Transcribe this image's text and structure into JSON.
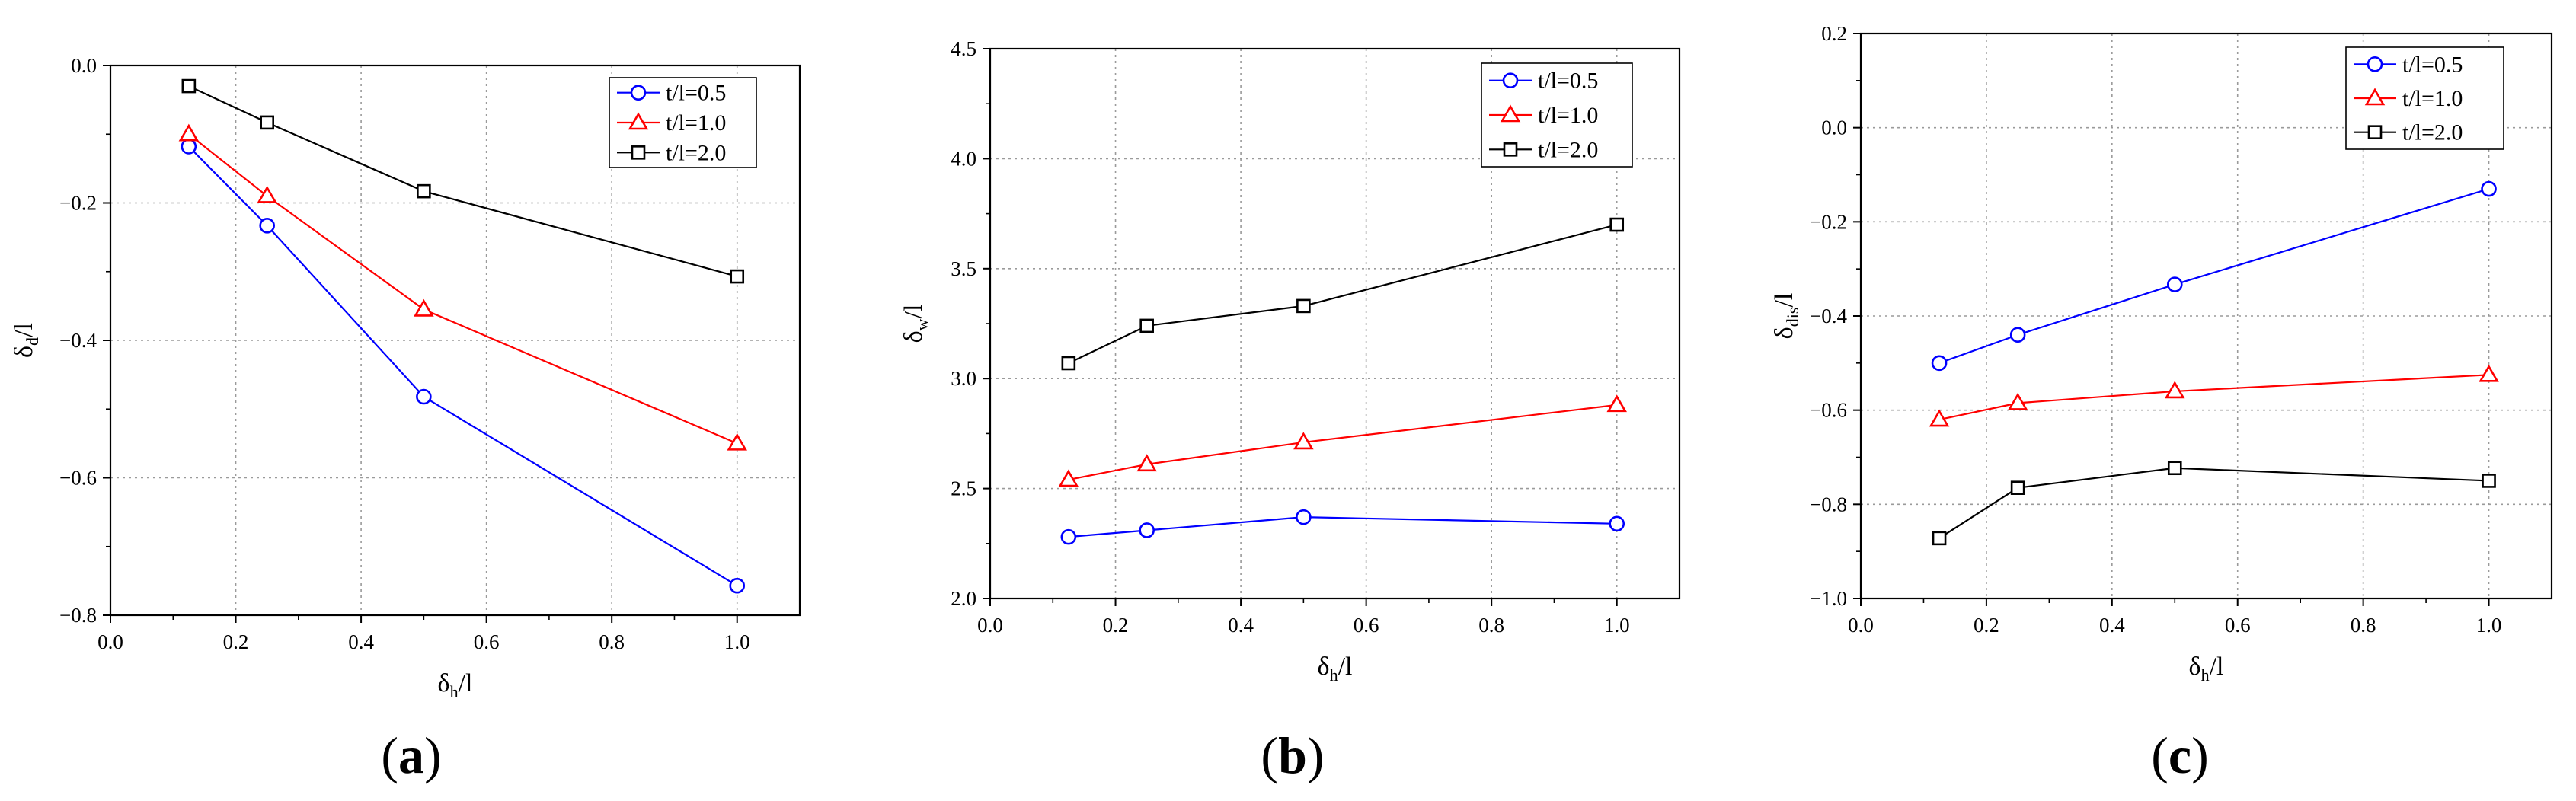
{
  "chart_data": [
    {
      "type": "line",
      "panel_label": "a",
      "x": [
        0.125,
        0.25,
        0.5,
        1.0
      ],
      "xlim": [
        0.0,
        1.1
      ],
      "ylim": [
        -0.8,
        0.0
      ],
      "xticks": [
        0.0,
        0.2,
        0.4,
        0.6,
        0.8,
        1.0
      ],
      "yticks": [
        -0.8,
        -0.6,
        -0.4,
        -0.2,
        0.0
      ],
      "xtick_labels": [
        "0.0",
        "0.2",
        "0.4",
        "0.6",
        "0.8",
        "1.0"
      ],
      "ytick_labels": [
        "−0.8",
        "−0.6",
        "−0.4",
        "−0.2",
        "0.0"
      ],
      "xlabel": {
        "main": "δ",
        "sub": "h",
        "rest": "/l"
      },
      "ylabel": {
        "main": "δ",
        "sub": "d",
        "rest": "/l"
      },
      "grid": true,
      "legend_position": "top-right",
      "series": [
        {
          "name": "t/l=0.5",
          "color": "#0000ff",
          "marker": "circle",
          "values": [
            -0.118,
            -0.233,
            -0.482,
            -0.757
          ]
        },
        {
          "name": "t/l=1.0",
          "color": "#ff0000",
          "marker": "triangle",
          "values": [
            -0.1,
            -0.19,
            -0.355,
            -0.55
          ]
        },
        {
          "name": "t/l=2.0",
          "color": "#000000",
          "marker": "square",
          "values": [
            -0.03,
            -0.083,
            -0.183,
            -0.307
          ]
        }
      ]
    },
    {
      "type": "line",
      "panel_label": "b",
      "x": [
        0.125,
        0.25,
        0.5,
        1.0
      ],
      "xlim": [
        0.0,
        1.1
      ],
      "ylim": [
        2.0,
        4.5
      ],
      "xticks": [
        0.0,
        0.2,
        0.4,
        0.6,
        0.8,
        1.0
      ],
      "yticks": [
        2.0,
        2.5,
        3.0,
        3.5,
        4.0,
        4.5
      ],
      "xtick_labels": [
        "0.0",
        "0.2",
        "0.4",
        "0.6",
        "0.8",
        "1.0"
      ],
      "ytick_labels": [
        "2.0",
        "2.5",
        "3.0",
        "3.5",
        "4.0",
        "4.5"
      ],
      "xlabel": {
        "main": "δ",
        "sub": "h",
        "rest": "/l"
      },
      "ylabel": {
        "main": "δ",
        "sub": "w",
        "rest": "/l"
      },
      "grid": true,
      "legend_position": "top-right",
      "series": [
        {
          "name": "t/l=0.5",
          "color": "#0000ff",
          "marker": "circle",
          "values": [
            2.28,
            2.31,
            2.37,
            2.34
          ]
        },
        {
          "name": "t/l=1.0",
          "color": "#ff0000",
          "marker": "triangle",
          "values": [
            2.54,
            2.61,
            2.71,
            2.88
          ]
        },
        {
          "name": "t/l=2.0",
          "color": "#000000",
          "marker": "square",
          "values": [
            3.07,
            3.24,
            3.33,
            3.7
          ]
        }
      ]
    },
    {
      "type": "line",
      "panel_label": "c",
      "x": [
        0.125,
        0.25,
        0.5,
        1.0
      ],
      "xlim": [
        0.0,
        1.1
      ],
      "ylim": [
        -1.0,
        0.2
      ],
      "xticks": [
        0.0,
        0.2,
        0.4,
        0.6,
        0.8,
        1.0
      ],
      "yticks": [
        -1.0,
        -0.8,
        -0.6,
        -0.4,
        -0.2,
        0.0,
        0.2
      ],
      "xtick_labels": [
        "0.0",
        "0.2",
        "0.4",
        "0.6",
        "0.8",
        "1.0"
      ],
      "ytick_labels": [
        "−1.0",
        "−0.8",
        "−0.6",
        "−0.4",
        "−0.2",
        "0.0",
        "0.2"
      ],
      "xlabel": {
        "main": "δ",
        "sub": "h",
        "rest": "/l"
      },
      "ylabel": {
        "main": "δ",
        "sub": "dis",
        "rest": "/l"
      },
      "grid": true,
      "legend_position": "top-right",
      "series": [
        {
          "name": "t/l=0.5",
          "color": "#0000ff",
          "marker": "circle",
          "values": [
            -0.5,
            -0.44,
            -0.333,
            -0.13
          ]
        },
        {
          "name": "t/l=1.0",
          "color": "#ff0000",
          "marker": "triangle",
          "values": [
            -0.62,
            -0.585,
            -0.56,
            -0.525
          ]
        },
        {
          "name": "t/l=2.0",
          "color": "#000000",
          "marker": "square",
          "values": [
            -0.872,
            -0.765,
            -0.723,
            -0.75
          ]
        }
      ]
    }
  ]
}
